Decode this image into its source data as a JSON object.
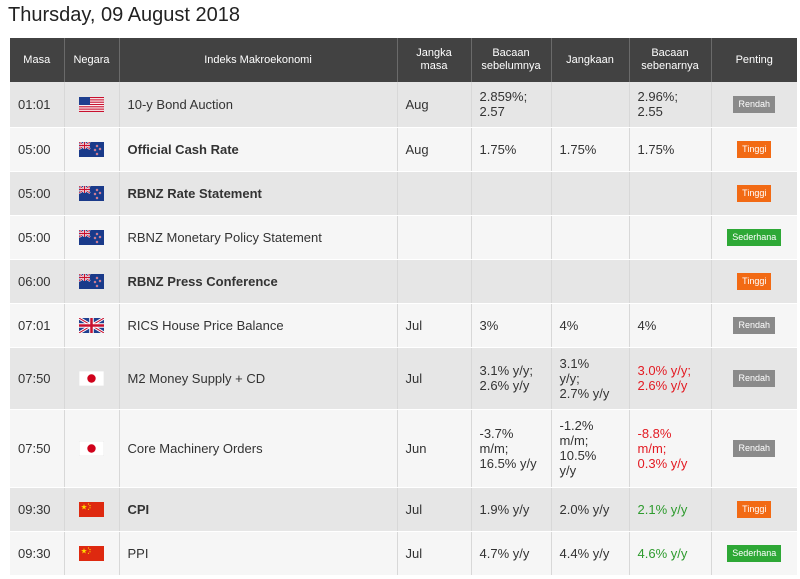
{
  "date_title": "Thursday, 09 August 2018",
  "headers": {
    "masa": "Masa",
    "negara": "Negara",
    "indeks": "Indeks Makroekonomi",
    "jangka1": "Jangka",
    "jangka2": "masa",
    "bacaan1": "Bacaan",
    "bacaan2": "sebelumnya",
    "jangkaan": "Jangkaan",
    "sebenar1": "Bacaan",
    "sebenar2": "sebenarnya",
    "penting": "Penting"
  },
  "rows": [
    {
      "time": "01:01",
      "country": "us-flag",
      "indicator": "10-y Bond Auction",
      "bold": false,
      "period": "Aug",
      "prev": [
        "2.859%;",
        "2.57"
      ],
      "forecast": [],
      "actual": [
        "2.96%;",
        "2.55"
      ],
      "actual_color": "normal",
      "importance": "Rendah",
      "importance_color": "#8a8a8a"
    },
    {
      "time": "05:00",
      "country": "nz-flag",
      "indicator": "Official Cash Rate",
      "bold": true,
      "period": "Aug",
      "prev": [
        "1.75%"
      ],
      "forecast": [
        "1.75%"
      ],
      "actual": [
        "1.75%"
      ],
      "actual_color": "normal",
      "importance": "Tinggi",
      "importance_color": "#f26a14"
    },
    {
      "time": "05:00",
      "country": "nz-flag",
      "indicator": "RBNZ Rate Statement",
      "bold": true,
      "period": "",
      "prev": [],
      "forecast": [],
      "actual": [],
      "actual_color": "normal",
      "importance": "Tinggi",
      "importance_color": "#f26a14"
    },
    {
      "time": "05:00",
      "country": "nz-flag",
      "indicator": "RBNZ Monetary Policy Statement",
      "bold": false,
      "period": "",
      "prev": [],
      "forecast": [],
      "actual": [],
      "actual_color": "normal",
      "importance": "Sederhana",
      "importance_color": "#2ea836"
    },
    {
      "time": "06:00",
      "country": "nz-flag",
      "indicator": "RBNZ Press Conference",
      "bold": true,
      "period": "",
      "prev": [],
      "forecast": [],
      "actual": [],
      "actual_color": "normal",
      "importance": "Tinggi",
      "importance_color": "#f26a14"
    },
    {
      "time": "07:01",
      "country": "uk-flag",
      "indicator": "RICS House Price Balance",
      "bold": false,
      "period": "Jul",
      "prev": [
        "3%"
      ],
      "forecast": [
        "4%"
      ],
      "actual": [
        "4%"
      ],
      "actual_color": "normal",
      "importance": "Rendah",
      "importance_color": "#8a8a8a"
    },
    {
      "time": "07:50",
      "country": "jp-flag",
      "indicator": "M2 Money Supply + CD",
      "bold": false,
      "period": "Jul",
      "prev": [
        "3.1% y/y;",
        "2.6% y/y"
      ],
      "forecast": [
        "3.1%",
        "y/y;",
        "2.7% y/y"
      ],
      "actual": [
        "3.0% y/y;",
        "2.6% y/y"
      ],
      "actual_color": "red",
      "importance": "Rendah",
      "importance_color": "#8a8a8a"
    },
    {
      "time": "07:50",
      "country": "jp-flag",
      "indicator": "Core Machinery Orders",
      "bold": false,
      "period": "Jun",
      "prev": [
        "-3.7%",
        "m/m;",
        "16.5% y/y"
      ],
      "forecast": [
        "-1.2%",
        "m/m;",
        "10.5%",
        "y/y"
      ],
      "actual": [
        "-8.8%",
        "m/m;",
        "0.3% y/y"
      ],
      "actual_color": "red",
      "importance": "Rendah",
      "importance_color": "#8a8a8a"
    },
    {
      "time": "09:30",
      "country": "cn-flag",
      "indicator": "CPI",
      "bold": true,
      "period": "Jul",
      "prev": [
        "1.9% y/y"
      ],
      "forecast": [
        "2.0% y/y"
      ],
      "actual": [
        "2.1% y/y"
      ],
      "actual_color": "green",
      "importance": "Tinggi",
      "importance_color": "#f26a14"
    },
    {
      "time": "09:30",
      "country": "cn-flag",
      "indicator": "PPI",
      "bold": false,
      "period": "Jul",
      "prev": [
        "4.7% y/y"
      ],
      "forecast": [
        "4.4% y/y"
      ],
      "actual": [
        "4.6% y/y"
      ],
      "actual_color": "green",
      "importance": "Sederhana",
      "importance_color": "#2ea836"
    }
  ]
}
